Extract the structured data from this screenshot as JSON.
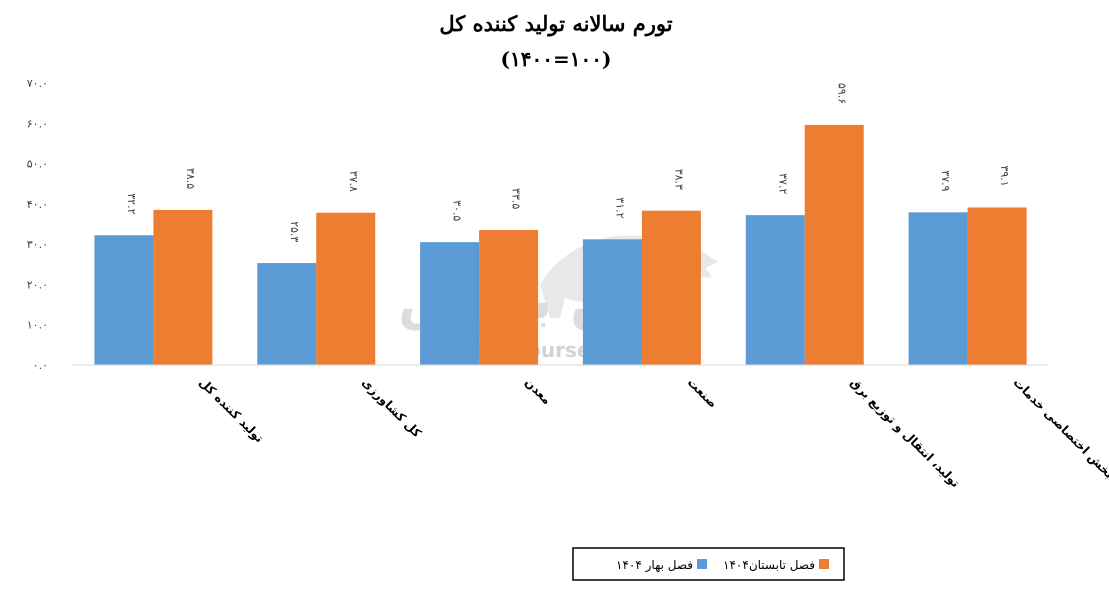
{
  "chart_data": {
    "type": "bar",
    "title": "تورم سالانه تولید کننده کل",
    "subtitle": "(۱۴۰۰=۱۰۰)",
    "categories": [
      "تولید کننده کل",
      "کل کشاورزی",
      "معدن",
      "صنعت",
      "تولید، انتقال و توزیع برق",
      "بخش اختصاصی خدمات"
    ],
    "series": [
      {
        "name": "فصل بهار ۱۴۰۴",
        "color": "#5b9bd5",
        "values": [
          32.2,
          25.3,
          30.5,
          31.2,
          37.2,
          37.9
        ],
        "labels": [
          "۳۲.۲",
          "۲۵.۳",
          "۳۰.۵",
          "۳۱.۲",
          "۳۷.۲",
          "۳۷.۹"
        ]
      },
      {
        "name": "فصل تابستان۱۴۰۴",
        "color": "#ed7d31",
        "values": [
          38.5,
          37.8,
          33.5,
          38.3,
          59.6,
          39.1
        ],
        "labels": [
          "۳۸.۵",
          "۳۷.۸",
          "۳۳.۵",
          "۳۸.۳",
          "۵۹.۶",
          "۳۹.۱"
        ]
      }
    ],
    "ylim": [
      0,
      70
    ],
    "yticks": [
      0,
      10,
      20,
      30,
      40,
      50,
      60,
      70
    ],
    "ytick_labels": [
      "۰.۰",
      "۱۰.۰",
      "۲۰.۰",
      "۳۰.۰",
      "۴۰.۰",
      "۵۰.۰",
      "۶۰.۰",
      "۷۰.۰"
    ],
    "legend_position": "bottom",
    "grid": false
  },
  "watermark": {
    "arabic": "نبض بورس",
    "latin": "nabzebourse.com"
  }
}
